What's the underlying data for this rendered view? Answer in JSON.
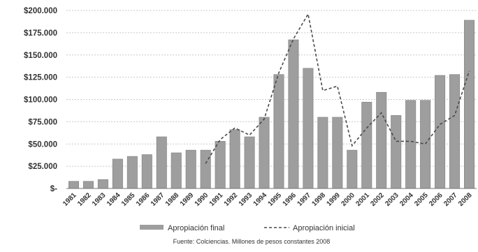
{
  "chart_data": {
    "type": "bar",
    "categories": [
      "1981",
      "1982",
      "1983",
      "1984",
      "1985",
      "1986",
      "1987",
      "1988",
      "1989",
      "1990",
      "1991",
      "1992",
      "1993",
      "1994",
      "1995",
      "1996",
      "1997",
      "1998",
      "1999",
      "2000",
      "2001",
      "2002",
      "2003",
      "2004",
      "2005",
      "2006",
      "2007",
      "2008"
    ],
    "series": [
      {
        "name": "Apropiación final",
        "type": "bar",
        "values": [
          8000,
          8000,
          10000,
          33000,
          36000,
          38000,
          58000,
          40000,
          43000,
          43000,
          53000,
          66000,
          58000,
          80000,
          128000,
          167000,
          135000,
          80000,
          80000,
          43000,
          97000,
          108000,
          82000,
          99000,
          99000,
          127000,
          128000,
          189000
        ]
      },
      {
        "name": "Apropiación inicial",
        "type": "line",
        "style": "dashed",
        "values": [
          null,
          null,
          null,
          null,
          null,
          null,
          null,
          null,
          null,
          28000,
          55000,
          68000,
          60000,
          78000,
          130000,
          168000,
          196000,
          110000,
          115000,
          48000,
          68000,
          85000,
          53000,
          53000,
          50000,
          72000,
          82000,
          132000
        ]
      }
    ],
    "yticks": [
      "$-",
      "$25.000",
      "$50.000",
      "$75.000",
      "$100.000",
      "$125.000",
      "$150.000",
      "$175.000",
      "$200.000"
    ],
    "ylim": [
      0,
      200000
    ],
    "grid": true,
    "legend_position": "bottom",
    "source_note": "Fuente: Colciencias. Millones de pesos constantes 2008",
    "colors": {
      "bar": "#9e9e9e",
      "bar_edge": "#8a8a8a",
      "line": "#4a4a4a",
      "grid": "#c8c8c8",
      "axis": "#777777"
    }
  }
}
